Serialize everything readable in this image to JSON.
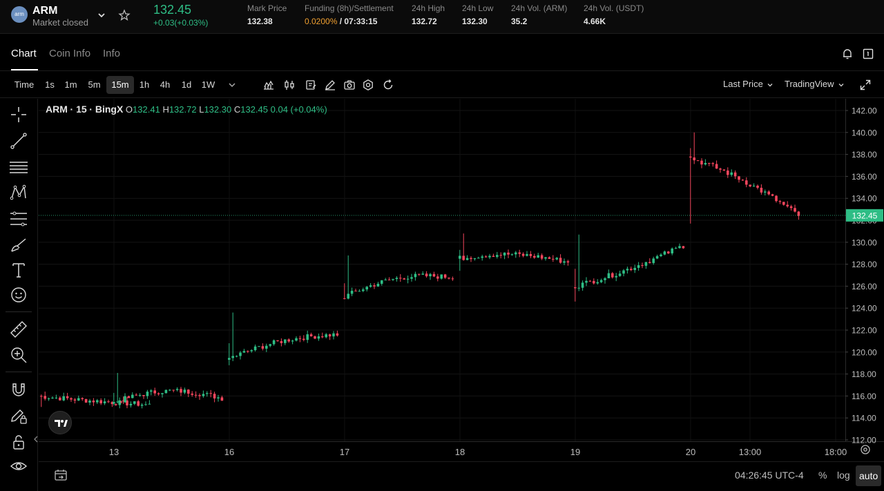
{
  "ticker": {
    "logo_text": "arm",
    "symbol": "ARM",
    "status": "Market closed",
    "last_price": "132.45",
    "change": "+0.03(+0.03%)",
    "stats": [
      {
        "label": "Mark Price",
        "value": "132.38"
      },
      {
        "label": "Funding (8h)/Settlement",
        "value_highlight": "0.0200%",
        "value_rest": " / 07:33:15"
      },
      {
        "label": "24h High",
        "value": "132.72"
      },
      {
        "label": "24h Low",
        "value": "132.30"
      },
      {
        "label": "24h Vol. (ARM)",
        "value": "35.2"
      },
      {
        "label": "24h Vol. (USDT)",
        "value": "4.66K"
      }
    ],
    "colors": {
      "up": "#2ebd85",
      "down": "#f6465d",
      "funding": "#f0a030"
    }
  },
  "tabs": [
    {
      "label": "Chart",
      "active": true
    },
    {
      "label": "Coin Info",
      "active": false
    },
    {
      "label": "Info",
      "active": false
    }
  ],
  "header_icons": [
    "bell-icon",
    "fullscreen-toggle-icon"
  ],
  "toolbar": {
    "intervals": [
      "Time",
      "1s",
      "1m",
      "5m",
      "15m",
      "1h",
      "4h",
      "1d",
      "1W"
    ],
    "active_interval": "15m",
    "price_type": "Last Price",
    "chart_engine": "TradingView",
    "icons": [
      "chevron-down-icon",
      "indicators-icon",
      "candle-type-icon",
      "template-icon",
      "draw-pen-icon",
      "camera-icon",
      "settings-icon",
      "refresh-icon",
      "expand-icon"
    ]
  },
  "drawing_tools": [
    "crosshair-icon",
    "trend-line-icon",
    "horizontal-lines-icon",
    "pattern-icon",
    "fib-icon",
    "brush-icon",
    "text-icon",
    "emoji-icon",
    "ruler-icon",
    "zoom-in-icon",
    "magnet-icon",
    "lock-draw-icon",
    "lock-icon",
    "eye-icon"
  ],
  "legend": {
    "symbol": "ARM",
    "interval": "15",
    "exchange": "BingX",
    "open": "132.41",
    "high": "132.72",
    "low": "132.30",
    "close": "132.45",
    "change": "0.04 (+0.04%)"
  },
  "chart_data": {
    "type": "candlestick",
    "y_axis_labels": [
      "142.00",
      "140.00",
      "138.00",
      "136.00",
      "134.00",
      "132.00",
      "130.00",
      "128.00",
      "126.00",
      "124.00",
      "122.00",
      "120.00",
      "118.00",
      "116.00",
      "114.00",
      "112.00"
    ],
    "ylim": [
      112,
      142
    ],
    "x_axis_labels": [
      "13",
      "16",
      "17",
      "18",
      "19",
      "20",
      "13:00",
      "18:00"
    ],
    "last_price_label": "132.45",
    "last_price": 132.45,
    "day_sessions": [
      {
        "day": "12",
        "open": 116.0,
        "close": 115.2,
        "high": 116.4,
        "low": 114.7
      },
      {
        "day": "13",
        "open": 115.3,
        "close": 115.8,
        "high": 118.1,
        "low": 115.0
      },
      {
        "day": "16",
        "open": 119.3,
        "close": 121.6,
        "high": 123.6,
        "low": 118.5
      },
      {
        "day": "17",
        "open": 124.9,
        "close": 126.8,
        "high": 128.8,
        "low": 124.8
      },
      {
        "day": "18",
        "open": 128.5,
        "close": 128.2,
        "high": 130.8,
        "low": 127.1
      },
      {
        "day": "19",
        "open": 125.9,
        "close": 129.7,
        "high": 130.7,
        "low": 124.3
      },
      {
        "day": "20",
        "open": 137.8,
        "close": 132.45,
        "high": 140.0,
        "low": 131.4
      }
    ]
  },
  "bottom": {
    "clock": "04:26:45 UTC-4",
    "percent": "%",
    "log": "log",
    "auto": "auto"
  }
}
